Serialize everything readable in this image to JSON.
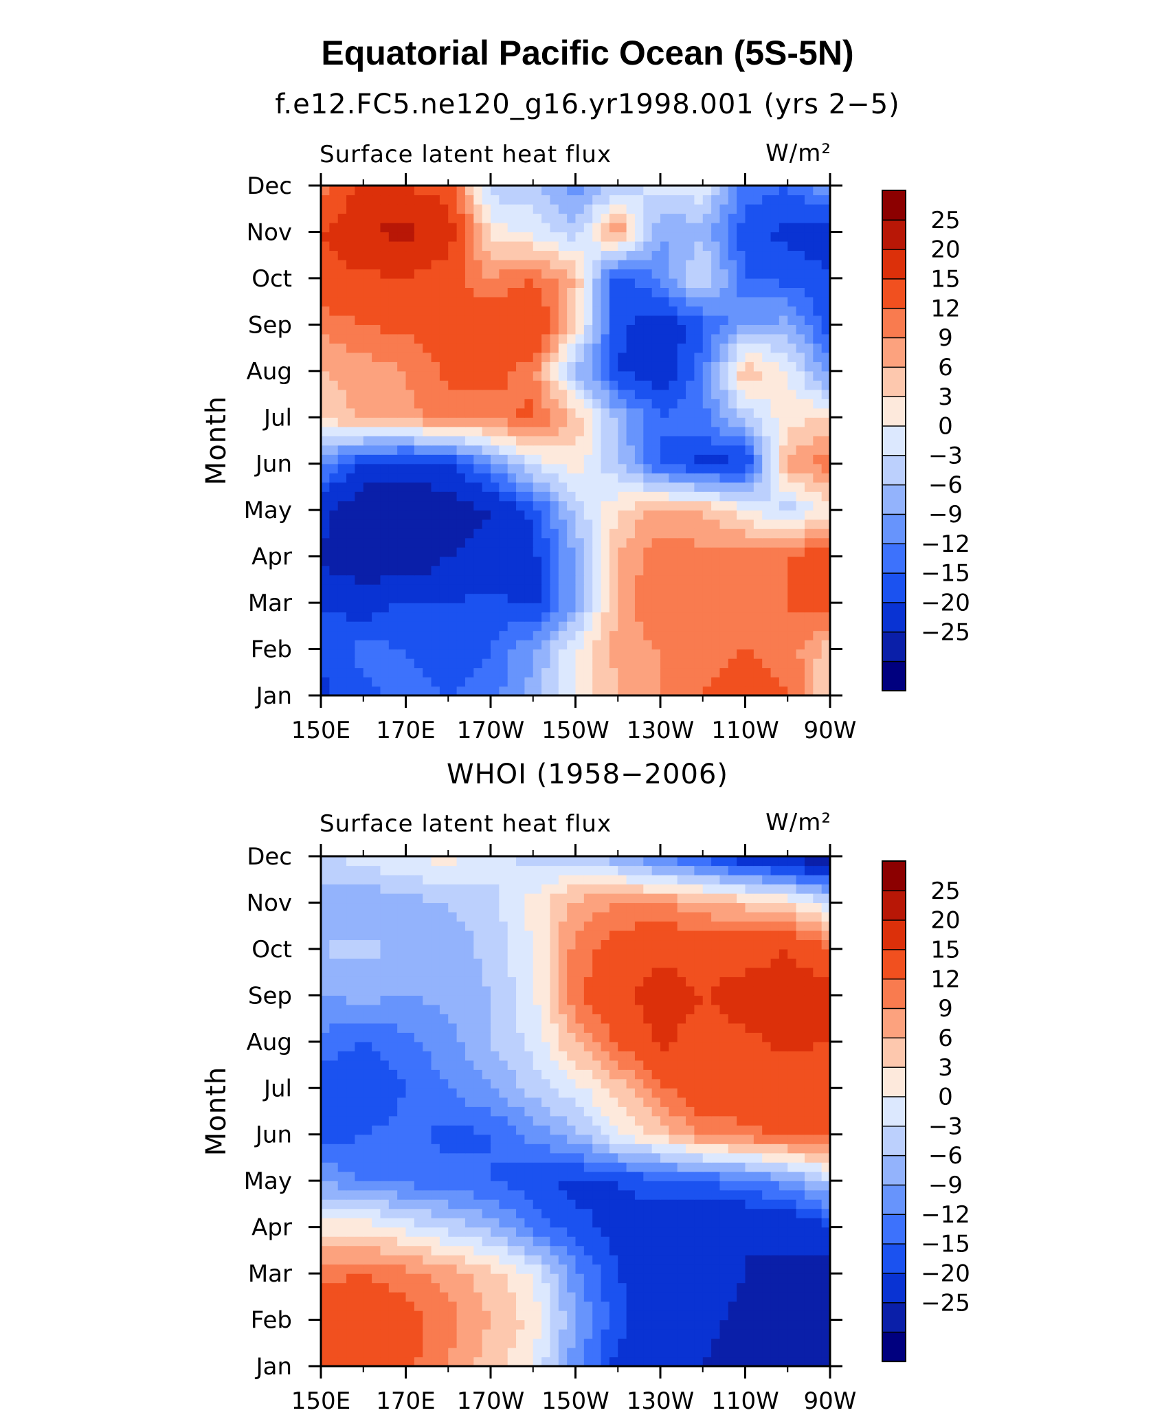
{
  "title": "Equatorial Pacific Ocean (5S-5N)",
  "colors": [
    "#00007f",
    "#0a1fa9",
    "#0933d3",
    "#1b52f0",
    "#3d72fc",
    "#6794fc",
    "#93b3fc",
    "#bcd0fd",
    "#dce8fe",
    "#fde9dc",
    "#fdc8ae",
    "#fca27e",
    "#f97b4f",
    "#f1501f",
    "#dc300a",
    "#b81706",
    "#8c0000"
  ],
  "chart_data": [
    {
      "type": "heatmap",
      "title": "f.e12.FC5.ne120_g16.yr1998.001 (yrs 2−5)",
      "variable": "Surface latent heat flux",
      "units": "W/m²",
      "xlabel": "",
      "ylabel": "Month",
      "x_ticks": [
        "150E",
        "170E",
        "170W",
        "150W",
        "130W",
        "110W",
        "90W"
      ],
      "y_ticks": [
        "Jan",
        "Feb",
        "Mar",
        "Apr",
        "May",
        "Jun",
        "Jul",
        "Aug",
        "Sep",
        "Oct",
        "Nov",
        "Dec"
      ],
      "colorbar_labels": [
        "25",
        "20",
        "15",
        "12",
        "9",
        "6",
        "3",
        "0",
        "−3",
        "−6",
        "−9",
        "−12",
        "−15",
        "−20",
        "−25"
      ],
      "levels": [
        -25,
        -20,
        -15,
        -12,
        -9,
        -6,
        -3,
        0,
        3,
        6,
        9,
        12,
        15,
        20,
        25
      ],
      "x": [
        "150E",
        "160E",
        "170E",
        "180",
        "170W",
        "160W",
        "150W",
        "140W",
        "130W",
        "120W",
        "110W",
        "100W",
        "90W"
      ],
      "z": [
        [
          -16,
          -13,
          -10,
          -12,
          -10,
          -5,
          3,
          9,
          12,
          15,
          17,
          15,
          6
        ],
        [
          -14,
          -11,
          -12,
          -15,
          -12,
          -6,
          3,
          10,
          12,
          14,
          15,
          14,
          7
        ],
        [
          -15,
          -17,
          -14,
          -15,
          -14,
          -16,
          -6,
          10,
          15,
          12,
          14,
          15,
          18
        ],
        [
          -21,
          -24,
          -25,
          -20,
          -18,
          -16,
          -6,
          9,
          14,
          13,
          14,
          15,
          20
        ],
        [
          -18,
          -24,
          -24,
          -23,
          -20,
          -14,
          -2,
          6,
          10,
          9,
          4,
          -2,
          5
        ],
        [
          -8,
          -16,
          -18,
          -16,
          -8,
          1,
          5,
          -3,
          -12,
          -16,
          -16,
          10,
          14
        ],
        [
          6,
          10,
          11,
          13,
          13,
          16,
          8,
          -4,
          -12,
          -10,
          -2,
          5,
          6
        ],
        [
          9,
          10,
          12,
          16,
          17,
          13,
          -3,
          -15,
          -18,
          -10,
          9,
          3,
          -8
        ],
        [
          13,
          15,
          16,
          17,
          19,
          20,
          6,
          -14,
          -18,
          -13,
          -6,
          -5,
          -14
        ],
        [
          18,
          19,
          20,
          17,
          12,
          15,
          9,
          -15,
          -8,
          1,
          -12,
          -13,
          -14
        ],
        [
          20,
          25,
          26,
          23,
          5,
          2,
          -2,
          12,
          -6,
          -4,
          -14,
          -16,
          -18
        ],
        [
          12,
          22,
          20,
          18,
          -2,
          -2,
          -8,
          -2,
          1,
          2,
          -10,
          -12,
          -6
        ]
      ]
    },
    {
      "type": "heatmap",
      "title": "WHOI (1958−2006)",
      "variable": "Surface latent heat flux",
      "units": "W/m²",
      "xlabel": "",
      "ylabel": "Month",
      "x_ticks": [
        "150E",
        "170E",
        "170W",
        "150W",
        "130W",
        "110W",
        "90W"
      ],
      "y_ticks": [
        "Jan",
        "Feb",
        "Mar",
        "Apr",
        "May",
        "Jun",
        "Jul",
        "Aug",
        "Sep",
        "Oct",
        "Nov",
        "Dec"
      ],
      "colorbar_labels": [
        "25",
        "20",
        "15",
        "12",
        "9",
        "6",
        "3",
        "0",
        "−3",
        "−6",
        "−9",
        "−12",
        "−15",
        "−20",
        "−25"
      ],
      "levels": [
        -25,
        -20,
        -15,
        -12,
        -9,
        -6,
        -3,
        0,
        3,
        6,
        9,
        12,
        15,
        20,
        25
      ],
      "x": [
        "150E",
        "160E",
        "170E",
        "180",
        "170W",
        "160W",
        "150W",
        "140W",
        "130W",
        "120W",
        "110W",
        "100W",
        "90W"
      ],
      "z": [
        [
          15,
          17,
          16,
          12,
          7,
          3,
          -8,
          -16,
          -18,
          -20,
          -22,
          -23,
          -25
        ],
        [
          17,
          18,
          17,
          13,
          9,
          5,
          -6,
          -14,
          -18,
          -19,
          -21,
          -22,
          -24
        ],
        [
          14,
          15,
          13,
          11,
          7,
          3,
          -8,
          -15,
          -17,
          -18,
          -20,
          -21,
          -22
        ],
        [
          4,
          5,
          2,
          -1,
          -4,
          -10,
          -14,
          -16,
          -18,
          -19,
          -20,
          -19,
          -16
        ],
        [
          -6,
          -9,
          -10,
          -11,
          -12,
          -14,
          -16,
          -15,
          -13,
          -12,
          -10,
          -7,
          -1
        ],
        [
          -14,
          -12,
          -11,
          -13,
          -12,
          -8,
          -4,
          3,
          7,
          12,
          14,
          16,
          16
        ],
        [
          -14,
          -15,
          -12,
          -9,
          -6,
          -2,
          2,
          7,
          14,
          19,
          18,
          17,
          15
        ],
        [
          -10,
          -12,
          -10,
          -7,
          -3,
          1,
          9,
          16,
          21,
          18,
          19,
          21,
          20
        ],
        [
          -6,
          -5,
          -6,
          -5,
          -3,
          2,
          14,
          19,
          22,
          20,
          22,
          22,
          23
        ],
        [
          -3,
          -2,
          -4,
          -5,
          -2,
          3,
          13,
          17,
          19,
          18,
          18,
          20,
          16
        ],
        [
          -5,
          -6,
          -4,
          -3,
          -1,
          4,
          10,
          12,
          12,
          10,
          8,
          6,
          1
        ],
        [
          -1,
          2,
          3,
          4,
          1,
          -1,
          -2,
          -5,
          -10,
          -14,
          -18,
          -22,
          -24
        ]
      ]
    }
  ]
}
